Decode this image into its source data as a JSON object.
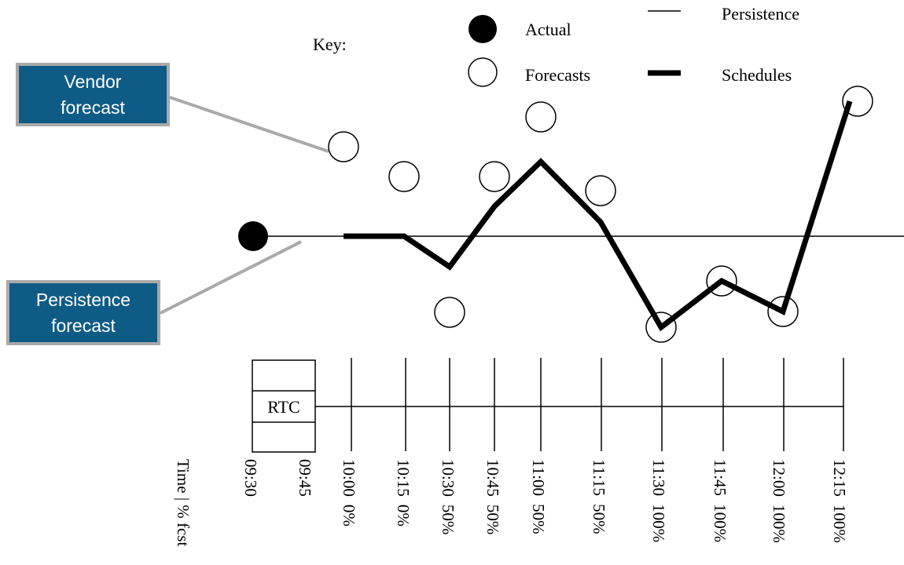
{
  "key": {
    "title": "Key:",
    "actual": "Actual",
    "forecasts": "Forecasts",
    "persistence": "Persistence",
    "schedules": "Schedules"
  },
  "callouts": {
    "vendor": [
      "Vendor",
      "forecast"
    ],
    "persistence": [
      "Persistence",
      "forecast"
    ]
  },
  "rtc_label": "RTC",
  "axis_label": "Time | % fcst",
  "times": [
    {
      "time": "09:30",
      "pct": ""
    },
    {
      "time": "09:45",
      "pct": ""
    },
    {
      "time": "10:00",
      "pct": "0%"
    },
    {
      "time": "10:15",
      "pct": "0%"
    },
    {
      "time": "10:30",
      "pct": "50%"
    },
    {
      "time": "10:45",
      "pct": "50%"
    },
    {
      "time": "11:00",
      "pct": "50%"
    },
    {
      "time": "11:15",
      "pct": "50%"
    },
    {
      "time": "11:30",
      "pct": "100%"
    },
    {
      "time": "11:45",
      "pct": "100%"
    },
    {
      "time": "12:00",
      "pct": "100%"
    },
    {
      "time": "12:15",
      "pct": "100%"
    }
  ],
  "colors": {
    "callout_fill": "#0e5b86",
    "callout_border": "#a9a9a9",
    "connector": "#a9a9a9",
    "ink": "#000000"
  }
}
